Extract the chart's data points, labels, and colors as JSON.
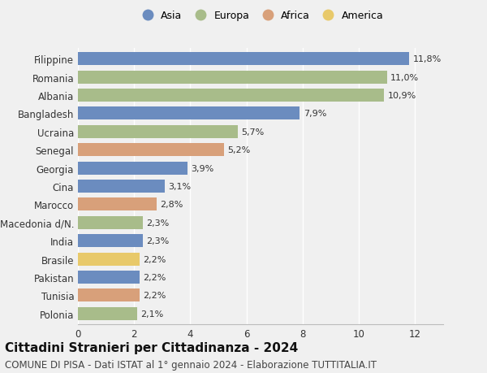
{
  "categories": [
    "Polonia",
    "Tunisia",
    "Pakistan",
    "Brasile",
    "India",
    "Macedonia d/N.",
    "Marocco",
    "Cina",
    "Georgia",
    "Senegal",
    "Ucraina",
    "Bangladesh",
    "Albania",
    "Romania",
    "Filippine"
  ],
  "values": [
    2.1,
    2.2,
    2.2,
    2.2,
    2.3,
    2.3,
    2.8,
    3.1,
    3.9,
    5.2,
    5.7,
    7.9,
    10.9,
    11.0,
    11.8
  ],
  "bar_colors": [
    "#a8bc8a",
    "#d8a07a",
    "#6b8cbf",
    "#e8c96a",
    "#6b8cbf",
    "#a8bc8a",
    "#d8a07a",
    "#6b8cbf",
    "#6b8cbf",
    "#d8a07a",
    "#a8bc8a",
    "#6b8cbf",
    "#a8bc8a",
    "#a8bc8a",
    "#6b8cbf"
  ],
  "labels": [
    "2,1%",
    "2,2%",
    "2,2%",
    "2,2%",
    "2,3%",
    "2,3%",
    "2,8%",
    "3,1%",
    "3,9%",
    "5,2%",
    "5,7%",
    "7,9%",
    "10,9%",
    "11,0%",
    "11,8%"
  ],
  "xlim": [
    0,
    13
  ],
  "xticks": [
    0,
    2,
    4,
    6,
    8,
    10,
    12
  ],
  "title": "Cittadini Stranieri per Cittadinanza - 2024",
  "subtitle": "COMUNE DI PISA - Dati ISTAT al 1° gennaio 2024 - Elaborazione TUTTITALIA.IT",
  "legend_labels": [
    "Asia",
    "Europa",
    "Africa",
    "America"
  ],
  "legend_colors": [
    "#6b8cbf",
    "#a8bc8a",
    "#d8a07a",
    "#e8c96a"
  ],
  "background_color": "#f0f0f0",
  "grid_color": "#ffffff",
  "bar_height": 0.72,
  "title_fontsize": 11,
  "subtitle_fontsize": 8.5,
  "label_fontsize": 8,
  "tick_fontsize": 8.5,
  "legend_fontsize": 9
}
